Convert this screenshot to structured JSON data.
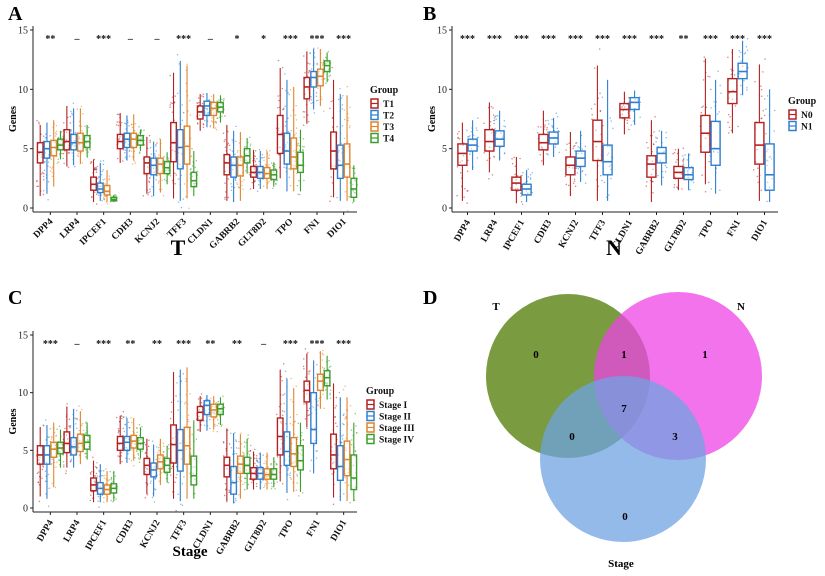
{
  "chart_data": [
    {
      "type": "box",
      "panel_label": "A",
      "xlabel": "T",
      "ylabel": "Genes",
      "ylim": [
        0,
        15
      ],
      "yticks": [
        0,
        5,
        10,
        15
      ],
      "categories": [
        "DPP4",
        "LRP4",
        "IPCEF1",
        "CDH3",
        "KCNJ2",
        "TFF3",
        "CLDN1",
        "GABRB2",
        "GLT8D2",
        "TPO",
        "FN1",
        "DIO1"
      ],
      "significance": [
        "**",
        "–",
        "***",
        "–",
        "–",
        "***",
        "–",
        "*",
        "*",
        "***",
        "***",
        "***"
      ],
      "legend_title": "Group",
      "series": [
        {
          "name": "T1",
          "color": "#b52020",
          "medians": [
            4.7,
            5.6,
            2.0,
            5.6,
            3.8,
            5.5,
            8.1,
            3.8,
            3.0,
            6.2,
            10.2,
            4.8
          ],
          "q1": [
            3.8,
            4.9,
            1.5,
            5.0,
            2.9,
            3.9,
            7.5,
            2.8,
            2.6,
            4.6,
            9.2,
            3.3
          ],
          "q3": [
            5.5,
            6.6,
            2.6,
            6.2,
            4.3,
            7.2,
            8.6,
            4.5,
            3.5,
            7.8,
            11.0,
            6.4
          ],
          "wlo": [
            1.0,
            3.5,
            0.5,
            3.8,
            1.2,
            0.8,
            6.5,
            0.6,
            1.6,
            2.5,
            7.1,
            0.9
          ],
          "whi": [
            7.0,
            8.6,
            4.1,
            8.0,
            6.0,
            11.4,
            9.6,
            7.0,
            4.9,
            11.8,
            13.2,
            10.8
          ]
        },
        {
          "name": "T2",
          "color": "#2f7fd1",
          "medians": [
            5.0,
            5.5,
            1.6,
            5.8,
            3.6,
            5.1,
            8.6,
            3.6,
            3.0,
            4.8,
            11.0,
            3.6
          ],
          "q1": [
            4.2,
            4.9,
            1.3,
            5.1,
            2.8,
            3.3,
            7.8,
            2.6,
            2.5,
            3.7,
            10.2,
            2.5
          ],
          "q3": [
            5.6,
            6.2,
            2.1,
            6.3,
            4.2,
            6.6,
            9.0,
            4.3,
            3.5,
            6.3,
            11.5,
            5.3
          ],
          "wlo": [
            1.2,
            3.6,
            0.6,
            4.0,
            1.0,
            0.6,
            6.8,
            0.5,
            1.6,
            1.4,
            8.3,
            0.6
          ],
          "whi": [
            7.2,
            8.4,
            3.8,
            7.8,
            5.6,
            12.4,
            9.7,
            6.5,
            4.8,
            10.8,
            13.4,
            9.6
          ]
        },
        {
          "name": "T3",
          "color": "#e0842c",
          "medians": [
            5.1,
            5.5,
            1.4,
            5.8,
            3.7,
            5.2,
            8.4,
            3.6,
            2.9,
            4.3,
            11.1,
            3.7
          ],
          "q1": [
            4.4,
            4.8,
            1.1,
            5.1,
            2.9,
            3.7,
            7.8,
            2.7,
            2.5,
            3.3,
            10.3,
            2.6
          ],
          "q3": [
            5.7,
            6.3,
            1.9,
            6.3,
            4.2,
            6.9,
            8.9,
            4.3,
            3.4,
            5.9,
            11.7,
            5.4
          ],
          "wlo": [
            1.8,
            3.7,
            0.5,
            4.0,
            1.3,
            0.8,
            6.7,
            0.6,
            1.6,
            1.4,
            8.6,
            0.6
          ],
          "whi": [
            7.4,
            8.4,
            3.2,
            7.9,
            5.8,
            12.0,
            9.6,
            6.4,
            4.8,
            10.2,
            13.4,
            9.5
          ]
        },
        {
          "name": "T4",
          "color": "#3a9e2b",
          "medians": [
            5.3,
            5.6,
            0.7,
            5.7,
            3.4,
            2.3,
            8.5,
            4.4,
            2.8,
            3.6,
            12.0,
            1.6
          ],
          "q1": [
            4.9,
            5.1,
            0.6,
            5.3,
            2.9,
            1.8,
            8.1,
            3.8,
            2.4,
            3.0,
            11.5,
            0.9
          ],
          "q3": [
            5.8,
            6.1,
            0.9,
            6.1,
            3.9,
            3.0,
            8.9,
            5.0,
            3.2,
            4.7,
            12.4,
            2.5
          ],
          "wlo": [
            4.1,
            4.3,
            0.5,
            4.8,
            2.0,
            1.0,
            7.2,
            2.9,
            1.8,
            1.4,
            10.6,
            0.5
          ],
          "whi": [
            6.5,
            7.0,
            1.1,
            6.6,
            4.7,
            4.8,
            9.5,
            5.9,
            3.8,
            6.6,
            13.1,
            3.6
          ]
        }
      ]
    },
    {
      "type": "box",
      "panel_label": "B",
      "xlabel": "N",
      "ylabel": "Genes",
      "ylim": [
        0,
        15
      ],
      "yticks": [
        0,
        5,
        10,
        15
      ],
      "categories": [
        "DPP4",
        "LRP4",
        "IPCEF1",
        "CDH3",
        "KCNJ2",
        "TFF3",
        "CLDN1",
        "GABRB2",
        "GLT8D2",
        "TPO",
        "FN1",
        "DIO1"
      ],
      "significance": [
        "***",
        "***",
        "***",
        "***",
        "***",
        "***",
        "***",
        "***",
        "**",
        "***",
        "***",
        "***"
      ],
      "legend_title": "Group",
      "series": [
        {
          "name": "N0",
          "color": "#b52020",
          "medians": [
            4.6,
            5.6,
            2.1,
            5.5,
            3.6,
            5.6,
            8.3,
            3.7,
            3.0,
            6.3,
            9.8,
            5.3
          ],
          "q1": [
            3.6,
            4.8,
            1.5,
            4.9,
            2.8,
            4.0,
            7.6,
            2.6,
            2.5,
            4.7,
            8.8,
            3.7
          ],
          "q3": [
            5.4,
            6.6,
            2.6,
            6.2,
            4.3,
            7.4,
            8.8,
            4.4,
            3.5,
            7.8,
            10.9,
            7.2
          ],
          "wlo": [
            0.6,
            3.0,
            0.4,
            3.6,
            1.0,
            0.6,
            6.2,
            0.5,
            1.5,
            2.0,
            6.3,
            0.6
          ],
          "whi": [
            7.2,
            8.9,
            4.3,
            8.2,
            6.4,
            12.0,
            9.8,
            7.4,
            5.0,
            12.6,
            13.4,
            12.1
          ]
        },
        {
          "name": "N1",
          "color": "#2f7fd1",
          "medians": [
            5.3,
            5.8,
            1.6,
            5.9,
            4.2,
            3.9,
            8.9,
            4.6,
            2.8,
            5.0,
            11.5,
            2.8
          ],
          "q1": [
            4.8,
            5.2,
            1.1,
            5.4,
            3.5,
            2.8,
            8.3,
            3.8,
            2.4,
            3.6,
            10.9,
            1.5
          ],
          "q3": [
            5.8,
            6.5,
            2.0,
            6.4,
            4.8,
            5.3,
            9.3,
            5.1,
            3.4,
            7.3,
            12.2,
            5.4
          ],
          "wlo": [
            3.2,
            4.0,
            0.5,
            4.3,
            2.2,
            0.6,
            7.0,
            1.9,
            1.5,
            1.2,
            9.5,
            0.5
          ],
          "whi": [
            7.4,
            8.2,
            3.2,
            7.6,
            6.5,
            10.8,
            9.9,
            6.5,
            4.6,
            10.8,
            14.1,
            10.0
          ]
        }
      ]
    },
    {
      "type": "box",
      "panel_label": "C",
      "xlabel": "Stage",
      "ylabel": "Genes",
      "ylim": [
        0,
        15
      ],
      "yticks": [
        0,
        5,
        10,
        15
      ],
      "categories": [
        "DPP4",
        "LRP4",
        "IPCEF1",
        "CDH3",
        "KCNJ2",
        "TFF3",
        "CLDN1",
        "GABRB2",
        "GLT8D2",
        "TPO",
        "FN1",
        "DIO1"
      ],
      "significance": [
        "***",
        "–",
        "***",
        "**",
        "**",
        "***",
        "**",
        "**",
        "–",
        "***",
        "***",
        "***"
      ],
      "legend_title": "Group",
      "series": [
        {
          "name": "Stage I",
          "color": "#b52020",
          "medians": [
            4.6,
            5.6,
            2.0,
            5.6,
            3.7,
            5.5,
            8.3,
            3.7,
            3.0,
            6.2,
            10.2,
            4.6
          ],
          "q1": [
            3.8,
            4.8,
            1.5,
            5.0,
            2.9,
            3.9,
            7.6,
            2.7,
            2.5,
            4.6,
            9.2,
            3.4
          ],
          "q3": [
            5.4,
            6.6,
            2.6,
            6.2,
            4.3,
            7.2,
            8.8,
            4.4,
            3.5,
            7.8,
            11.0,
            6.4
          ],
          "wlo": [
            1.0,
            3.5,
            0.5,
            3.8,
            1.2,
            0.8,
            6.6,
            0.6,
            1.6,
            2.3,
            7.0,
            0.9
          ],
          "whi": [
            7.0,
            8.8,
            4.1,
            8.0,
            6.0,
            11.8,
            9.7,
            6.9,
            4.9,
            12.0,
            13.4,
            10.8
          ]
        },
        {
          "name": "Stage II",
          "color": "#2f7fd1",
          "medians": [
            4.6,
            5.3,
            1.7,
            5.7,
            3.3,
            5.0,
            8.9,
            2.2,
            3.0,
            4.9,
            6.8,
            3.6
          ],
          "q1": [
            3.8,
            4.6,
            1.2,
            5.0,
            2.7,
            3.2,
            8.1,
            1.2,
            2.5,
            3.7,
            5.6,
            2.4
          ],
          "q3": [
            5.4,
            6.1,
            2.2,
            6.2,
            3.9,
            6.8,
            9.3,
            3.6,
            3.5,
            6.6,
            10.0,
            5.4
          ],
          "wlo": [
            0.8,
            3.5,
            0.5,
            3.9,
            1.0,
            0.6,
            6.7,
            0.4,
            1.6,
            1.3,
            3.0,
            0.6
          ],
          "whi": [
            7.2,
            8.6,
            3.8,
            7.8,
            5.5,
            12.0,
            9.8,
            6.5,
            4.8,
            11.2,
            12.8,
            9.6
          ]
        },
        {
          "name": "Stage III",
          "color": "#e0842c",
          "medians": [
            5.1,
            5.6,
            1.6,
            5.8,
            4.0,
            5.4,
            8.5,
            3.8,
            2.9,
            4.7,
            11.0,
            4.2
          ],
          "q1": [
            4.4,
            4.9,
            1.2,
            5.2,
            3.4,
            3.8,
            7.9,
            3.0,
            2.5,
            3.6,
            10.2,
            2.8
          ],
          "q3": [
            5.7,
            6.4,
            2.0,
            6.3,
            4.6,
            7.0,
            9.0,
            4.5,
            3.4,
            6.1,
            11.6,
            5.8
          ],
          "wlo": [
            1.8,
            3.8,
            0.5,
            4.1,
            2.0,
            0.8,
            6.8,
            0.8,
            1.6,
            1.4,
            8.6,
            0.6
          ],
          "whi": [
            7.4,
            8.4,
            3.2,
            7.8,
            6.0,
            12.2,
            9.7,
            6.4,
            4.8,
            10.4,
            13.6,
            9.6
          ]
        },
        {
          "name": "Stage IV",
          "color": "#3a9e2b",
          "medians": [
            5.2,
            5.7,
            1.7,
            5.6,
            3.7,
            2.8,
            8.6,
            3.7,
            2.9,
            4.1,
            11.3,
            2.6
          ],
          "q1": [
            4.7,
            5.1,
            1.3,
            5.1,
            3.1,
            2.0,
            8.1,
            3.0,
            2.5,
            3.3,
            10.6,
            1.6
          ],
          "q3": [
            5.7,
            6.3,
            2.1,
            6.1,
            4.3,
            4.5,
            9.0,
            4.4,
            3.4,
            5.4,
            11.9,
            4.6
          ],
          "wlo": [
            3.5,
            4.2,
            0.6,
            4.3,
            2.2,
            0.8,
            7.2,
            1.6,
            1.8,
            1.4,
            9.4,
            0.6
          ],
          "whi": [
            6.8,
            7.4,
            3.2,
            7.0,
            5.4,
            7.6,
            9.6,
            6.0,
            4.4,
            7.4,
            13.2,
            7.4
          ]
        }
      ]
    }
  ],
  "venn": {
    "panel_label": "D",
    "sets": [
      {
        "name": "T",
        "color": "#4e7a00"
      },
      {
        "name": "N",
        "color": "#ee44e6"
      },
      {
        "name": "Stage",
        "color": "#6fa3e2"
      }
    ],
    "regions": {
      "T_only": "0",
      "N_only": "1",
      "Stage_only": "0",
      "T_N": "1",
      "T_Stage": "0",
      "N_Stage": "3",
      "all": "7"
    }
  }
}
